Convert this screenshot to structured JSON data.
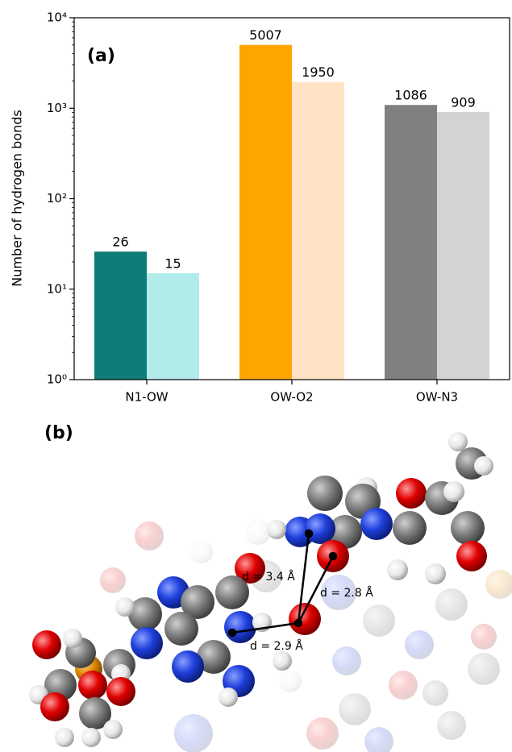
{
  "chart_data": {
    "type": "bar",
    "annotations": [
      "(a)"
    ],
    "ylabel": "Number of hydrogen bonds",
    "categories": [
      "N1-OW",
      "OW-O2",
      "OW-N3"
    ],
    "series": [
      {
        "colors": [
          "#0e7c78",
          "#ffa500",
          "#808080"
        ],
        "values": [
          26,
          5007,
          1086
        ]
      },
      {
        "colors": [
          "#b2ecea",
          "#ffe3c4",
          "#d3d3d3"
        ],
        "values": [
          15,
          1950,
          909
        ]
      }
    ],
    "yscale": "log",
    "ylim": [
      1,
      10000
    ],
    "yticks": [
      {
        "value": 1,
        "label": "10⁰"
      },
      {
        "value": 10,
        "label": "10¹"
      },
      {
        "value": 100,
        "label": "10²"
      },
      {
        "value": 1000,
        "label": "10³"
      },
      {
        "value": 10000,
        "label": "10⁴"
      }
    ]
  },
  "figure_b": {
    "label": "(b)",
    "distance_labels": [
      "d = 3.4 Å",
      "d = 2.8 Å",
      "d = 2.9 Å"
    ]
  }
}
